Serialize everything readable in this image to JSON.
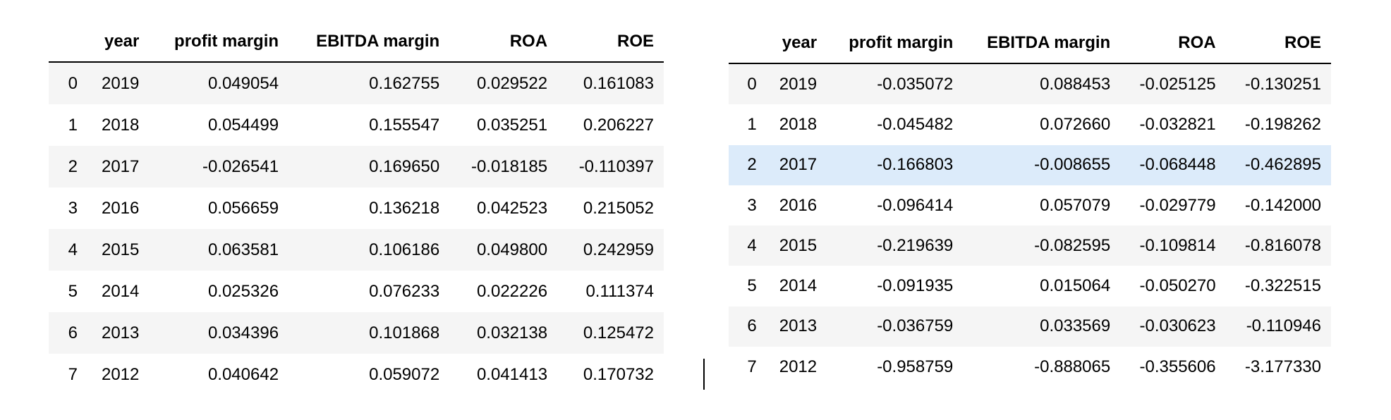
{
  "tables": [
    {
      "columns": [
        "",
        "year",
        "profit margin",
        "EBITDA margin",
        "ROA",
        "ROE"
      ],
      "rows": [
        [
          "0",
          "2019",
          "0.049054",
          "0.162755",
          "0.029522",
          "0.161083"
        ],
        [
          "1",
          "2018",
          "0.054499",
          "0.155547",
          "0.035251",
          "0.206227"
        ],
        [
          "2",
          "2017",
          "-0.026541",
          "0.169650",
          "-0.018185",
          "-0.110397"
        ],
        [
          "3",
          "2016",
          "0.056659",
          "0.136218",
          "0.042523",
          "0.215052"
        ],
        [
          "4",
          "2015",
          "0.063581",
          "0.106186",
          "0.049800",
          "0.242959"
        ],
        [
          "5",
          "2014",
          "0.025326",
          "0.076233",
          "0.022226",
          "0.111374"
        ],
        [
          "6",
          "2013",
          "0.034396",
          "0.101868",
          "0.032138",
          "0.125472"
        ],
        [
          "7",
          "2012",
          "0.040642",
          "0.059072",
          "0.041413",
          "0.170732"
        ]
      ]
    },
    {
      "columns": [
        "",
        "year",
        "profit margin",
        "EBITDA margin",
        "ROA",
        "ROE"
      ],
      "rows": [
        [
          "0",
          "2019",
          "-0.035072",
          "0.088453",
          "-0.025125",
          "-0.130251"
        ],
        [
          "1",
          "2018",
          "-0.045482",
          "0.072660",
          "-0.032821",
          "-0.198262"
        ],
        [
          "2",
          "2017",
          "-0.166803",
          "-0.008655",
          "-0.068448",
          "-0.462895"
        ],
        [
          "3",
          "2016",
          "-0.096414",
          "0.057079",
          "-0.029779",
          "-0.142000"
        ],
        [
          "4",
          "2015",
          "-0.219639",
          "-0.082595",
          "-0.109814",
          "-0.816078"
        ],
        [
          "5",
          "2014",
          "-0.091935",
          "0.015064",
          "-0.050270",
          "-0.322515"
        ],
        [
          "6",
          "2013",
          "-0.036759",
          "0.033569",
          "-0.030623",
          "-0.110946"
        ],
        [
          "7",
          "2012",
          "-0.958759",
          "-0.888065",
          "-0.355606",
          "-3.177330"
        ]
      ],
      "highlighted_row": 2
    }
  ],
  "colors": {
    "stripe": "#f5f5f5",
    "hover_highlight": "#dcebfa",
    "text": "#000000"
  }
}
